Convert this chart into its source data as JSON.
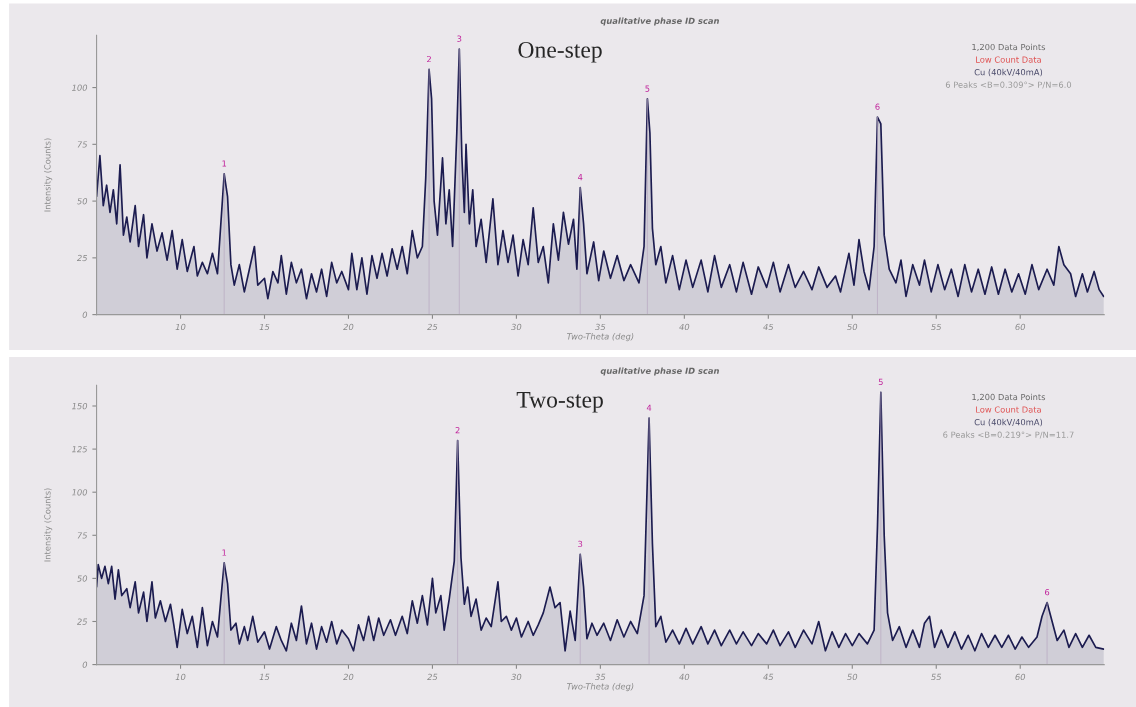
{
  "chart_data": [
    {
      "type": "area",
      "title": "One-step",
      "xlabel": "Two-Theta (deg)",
      "ylabel": "Intensity (Counts)",
      "color": "#1c1c50",
      "x": [
        5.0,
        5.2,
        5.4,
        5.6,
        5.8,
        6.0,
        6.2,
        6.4,
        6.6,
        6.8,
        7.0,
        7.3,
        7.5,
        7.8,
        8.0,
        8.3,
        8.6,
        8.9,
        9.2,
        9.5,
        9.8,
        10.1,
        10.4,
        10.8,
        11.0,
        11.3,
        11.6,
        11.9,
        12.2,
        12.4,
        12.6,
        12.8,
        13.0,
        13.2,
        13.5,
        13.8,
        14.1,
        14.4,
        14.6,
        15.0,
        15.2,
        15.5,
        15.8,
        16.0,
        16.3,
        16.6,
        16.9,
        17.2,
        17.5,
        17.8,
        18.1,
        18.4,
        18.7,
        19.0,
        19.3,
        19.6,
        20.0,
        20.2,
        20.5,
        20.8,
        21.1,
        21.4,
        21.7,
        22.0,
        22.3,
        22.6,
        22.9,
        23.2,
        23.5,
        23.8,
        24.1,
        24.4,
        24.6,
        24.8,
        24.95,
        25.1,
        25.3,
        25.6,
        25.8,
        26.0,
        26.2,
        26.45,
        26.6,
        26.75,
        26.9,
        27.0,
        27.2,
        27.4,
        27.6,
        27.9,
        28.2,
        28.6,
        28.9,
        29.2,
        29.5,
        29.8,
        30.1,
        30.4,
        30.7,
        31.0,
        31.3,
        31.6,
        31.9,
        32.2,
        32.5,
        32.8,
        33.1,
        33.4,
        33.6,
        33.8,
        34.0,
        34.2,
        34.6,
        34.9,
        35.2,
        35.6,
        36.0,
        36.4,
        36.8,
        37.3,
        37.6,
        37.8,
        37.95,
        38.1,
        38.3,
        38.6,
        38.9,
        39.3,
        39.7,
        40.1,
        40.5,
        41.0,
        41.4,
        41.8,
        42.2,
        42.7,
        43.1,
        43.5,
        44.0,
        44.4,
        44.9,
        45.3,
        45.7,
        46.2,
        46.6,
        47.1,
        47.6,
        48.0,
        48.5,
        49.0,
        49.3,
        49.8,
        50.1,
        50.4,
        50.7,
        51.0,
        51.3,
        51.5,
        51.7,
        51.9,
        52.2,
        52.6,
        52.9,
        53.2,
        53.6,
        54.0,
        54.3,
        54.7,
        55.1,
        55.5,
        55.9,
        56.3,
        56.7,
        57.1,
        57.5,
        57.9,
        58.3,
        58.7,
        59.1,
        59.5,
        59.9,
        60.3,
        60.7,
        61.1,
        61.6,
        62.0,
        62.3,
        62.6,
        63.0,
        63.3,
        63.7,
        64.0,
        64.4,
        64.7,
        64.97
      ],
      "values": [
        52,
        70,
        48,
        57,
        45,
        55,
        40,
        66,
        35,
        43,
        32,
        48,
        30,
        44,
        25,
        40,
        28,
        36,
        24,
        37,
        20,
        33,
        19,
        30,
        17,
        23,
        18,
        27,
        18,
        40,
        62,
        52,
        22,
        13,
        22,
        10,
        20,
        30,
        13,
        16,
        7,
        19,
        14,
        26,
        9,
        23,
        14,
        20,
        7,
        18,
        10,
        20,
        8,
        23,
        14,
        19,
        11,
        27,
        11,
        25,
        9,
        26,
        16,
        27,
        17,
        29,
        20,
        30,
        18,
        37,
        25,
        30,
        60,
        108,
        95,
        50,
        35,
        69,
        40,
        55,
        30,
        80,
        117,
        70,
        45,
        75,
        40,
        55,
        30,
        42,
        23,
        51,
        22,
        37,
        23,
        35,
        17,
        33,
        22,
        47,
        23,
        30,
        14,
        40,
        24,
        45,
        31,
        42,
        20,
        56,
        40,
        18,
        32,
        15,
        28,
        16,
        26,
        15,
        22,
        14,
        30,
        95,
        80,
        38,
        22,
        30,
        14,
        26,
        11,
        24,
        12,
        24,
        10,
        26,
        12,
        22,
        10,
        23,
        9,
        21,
        12,
        23,
        10,
        22,
        12,
        19,
        11,
        21,
        12,
        17,
        10,
        27,
        13,
        33,
        19,
        11,
        30,
        87,
        84,
        35,
        20,
        14,
        24,
        8,
        22,
        13,
        24,
        10,
        22,
        11,
        20,
        8,
        22,
        10,
        20,
        9,
        21,
        9,
        20,
        10,
        18,
        9,
        22,
        11,
        20,
        13,
        30,
        22,
        18,
        8,
        18,
        10,
        19,
        11,
        8
      ],
      "xlim": [
        5,
        65
      ],
      "ylim": [
        0,
        123
      ],
      "xticks": [
        10,
        15,
        20,
        25,
        30,
        35,
        40,
        45,
        50,
        55,
        60
      ],
      "yticks": [
        0,
        25,
        50,
        75,
        100
      ],
      "annotations": [
        {
          "text": "1",
          "x": 12.6,
          "y": 62
        },
        {
          "text": "2",
          "x": 24.8,
          "y": 108
        },
        {
          "text": "3",
          "x": 26.6,
          "y": 117
        },
        {
          "text": "4",
          "x": 33.8,
          "y": 56
        },
        {
          "text": "5",
          "x": 37.8,
          "y": 95
        },
        {
          "text": "6",
          "x": 51.5,
          "y": 87
        },
        "qualitative phase ID scan",
        "1,200 Data Points",
        "Low Count Data",
        "Cu (40kV/40mA)",
        "6 Peaks <B=0.309°> P/N=6.0"
      ]
    },
    {
      "type": "area",
      "title": "Two-step",
      "xlabel": "Two-Theta (deg)",
      "ylabel": "Intensity (Counts)",
      "color": "#1c1c50",
      "x": [
        5.0,
        5.1,
        5.3,
        5.5,
        5.7,
        5.9,
        6.1,
        6.3,
        6.5,
        6.8,
        7.0,
        7.3,
        7.5,
        7.8,
        8.0,
        8.3,
        8.5,
        8.8,
        9.1,
        9.4,
        9.6,
        9.8,
        10.1,
        10.4,
        10.7,
        11.0,
        11.3,
        11.6,
        11.9,
        12.2,
        12.4,
        12.6,
        12.8,
        13.0,
        13.3,
        13.5,
        13.8,
        14.0,
        14.3,
        14.6,
        15.0,
        15.3,
        15.7,
        16.0,
        16.3,
        16.6,
        16.9,
        17.2,
        17.5,
        17.8,
        18.1,
        18.4,
        18.7,
        19.0,
        19.3,
        19.6,
        20.0,
        20.3,
        20.6,
        20.9,
        21.2,
        21.5,
        21.8,
        22.1,
        22.5,
        22.8,
        23.2,
        23.5,
        23.8,
        24.1,
        24.4,
        24.7,
        25.0,
        25.2,
        25.5,
        25.7,
        26.0,
        26.3,
        26.5,
        26.7,
        26.9,
        27.1,
        27.3,
        27.6,
        27.9,
        28.2,
        28.5,
        28.9,
        29.1,
        29.4,
        29.7,
        30.0,
        30.3,
        30.7,
        31.0,
        31.3,
        31.6,
        32.0,
        32.3,
        32.6,
        32.9,
        33.2,
        33.5,
        33.8,
        34.0,
        34.2,
        34.5,
        34.8,
        35.2,
        35.6,
        36.0,
        36.4,
        36.8,
        37.2,
        37.6,
        37.9,
        38.1,
        38.3,
        38.6,
        38.9,
        39.3,
        39.7,
        40.1,
        40.5,
        41.0,
        41.4,
        41.8,
        42.2,
        42.7,
        43.1,
        43.5,
        44.0,
        44.4,
        44.9,
        45.3,
        45.7,
        46.2,
        46.6,
        47.1,
        47.6,
        48.0,
        48.4,
        48.8,
        49.2,
        49.6,
        50.0,
        50.4,
        50.9,
        51.3,
        51.5,
        51.7,
        51.9,
        52.1,
        52.4,
        52.8,
        53.2,
        53.6,
        54.0,
        54.3,
        54.6,
        54.9,
        55.3,
        55.7,
        56.1,
        56.5,
        56.9,
        57.3,
        57.7,
        58.1,
        58.5,
        58.9,
        59.3,
        59.7,
        60.1,
        60.5,
        61.0,
        61.3,
        61.6,
        61.9,
        62.2,
        62.6,
        62.9,
        63.3,
        63.7,
        64.1,
        64.5,
        64.97
      ],
      "values": [
        45,
        58,
        50,
        57,
        47,
        57,
        38,
        55,
        40,
        44,
        33,
        48,
        30,
        42,
        25,
        48,
        27,
        37,
        25,
        35,
        23,
        10,
        32,
        18,
        28,
        10,
        33,
        11,
        25,
        16,
        38,
        59,
        47,
        20,
        24,
        12,
        22,
        14,
        28,
        13,
        19,
        9,
        22,
        14,
        8,
        24,
        14,
        34,
        12,
        24,
        9,
        22,
        13,
        25,
        12,
        20,
        15,
        8,
        23,
        14,
        28,
        14,
        27,
        17,
        26,
        17,
        28,
        18,
        37,
        24,
        40,
        23,
        50,
        30,
        40,
        20,
        38,
        60,
        130,
        62,
        35,
        45,
        28,
        38,
        20,
        27,
        22,
        48,
        25,
        28,
        20,
        27,
        16,
        25,
        17,
        23,
        30,
        45,
        33,
        36,
        8,
        31,
        14,
        64,
        45,
        15,
        24,
        17,
        24,
        14,
        26,
        16,
        25,
        18,
        40,
        143,
        70,
        22,
        28,
        13,
        20,
        12,
        21,
        12,
        22,
        12,
        20,
        11,
        20,
        12,
        19,
        11,
        18,
        12,
        20,
        11,
        19,
        10,
        20,
        12,
        25,
        8,
        19,
        10,
        18,
        11,
        18,
        12,
        20,
        80,
        158,
        75,
        30,
        14,
        22,
        10,
        20,
        10,
        24,
        28,
        10,
        20,
        10,
        19,
        9,
        17,
        8,
        18,
        10,
        17,
        10,
        17,
        9,
        16,
        10,
        16,
        28,
        36,
        25,
        14,
        20,
        10,
        18,
        10,
        17,
        10,
        9
      ],
      "xlim": [
        5,
        65
      ],
      "ylim": [
        0,
        162
      ],
      "xticks": [
        10,
        15,
        20,
        25,
        30,
        35,
        40,
        45,
        50,
        55,
        60
      ],
      "yticks": [
        0,
        25,
        50,
        75,
        100,
        125,
        150
      ],
      "annotations": [
        {
          "text": "1",
          "x": 12.6,
          "y": 59
        },
        {
          "text": "2",
          "x": 26.5,
          "y": 130
        },
        {
          "text": "3",
          "x": 33.8,
          "y": 64
        },
        {
          "text": "4",
          "x": 37.9,
          "y": 143
        },
        {
          "text": "5",
          "x": 51.7,
          "y": 158
        },
        {
          "text": "6",
          "x": 61.6,
          "y": 36
        },
        "qualitative phase ID scan",
        "1,200 Data Points",
        "Low Count Data",
        "Cu (40kV/40mA)",
        "6 Peaks <B=0.219°> P/N=11.7"
      ]
    }
  ]
}
